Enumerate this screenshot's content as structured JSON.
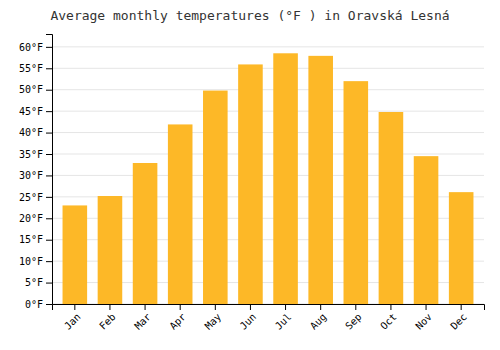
{
  "chart_data": {
    "type": "bar",
    "title": "Average monthly temperatures (°F ) in Oravská Lesná",
    "categories": [
      "Jan",
      "Feb",
      "Mar",
      "Apr",
      "May",
      "Jun",
      "Jul",
      "Aug",
      "Sep",
      "Oct",
      "Nov",
      "Dec"
    ],
    "values": [
      23.0,
      25.2,
      32.9,
      41.9,
      49.8,
      55.9,
      58.5,
      57.9,
      52.0,
      44.8,
      34.5,
      26.1
    ],
    "color": "#FDB827",
    "ylim": [
      0,
      63
    ],
    "yticks": [
      {
        "value": 0,
        "label": "0°F"
      },
      {
        "value": 5,
        "label": "5°F"
      },
      {
        "value": 10,
        "label": "10°F"
      },
      {
        "value": 15,
        "label": "15°F"
      },
      {
        "value": 20,
        "label": "20°F"
      },
      {
        "value": 25,
        "label": "25°F"
      },
      {
        "value": 30,
        "label": "30°F"
      },
      {
        "value": 35,
        "label": "35°F"
      },
      {
        "value": 40,
        "label": "40°F"
      },
      {
        "value": 45,
        "label": "45°F"
      },
      {
        "value": 50,
        "label": "50°F"
      },
      {
        "value": 55,
        "label": "55°F"
      },
      {
        "value": 60,
        "label": "60°F"
      }
    ],
    "grid": true
  }
}
